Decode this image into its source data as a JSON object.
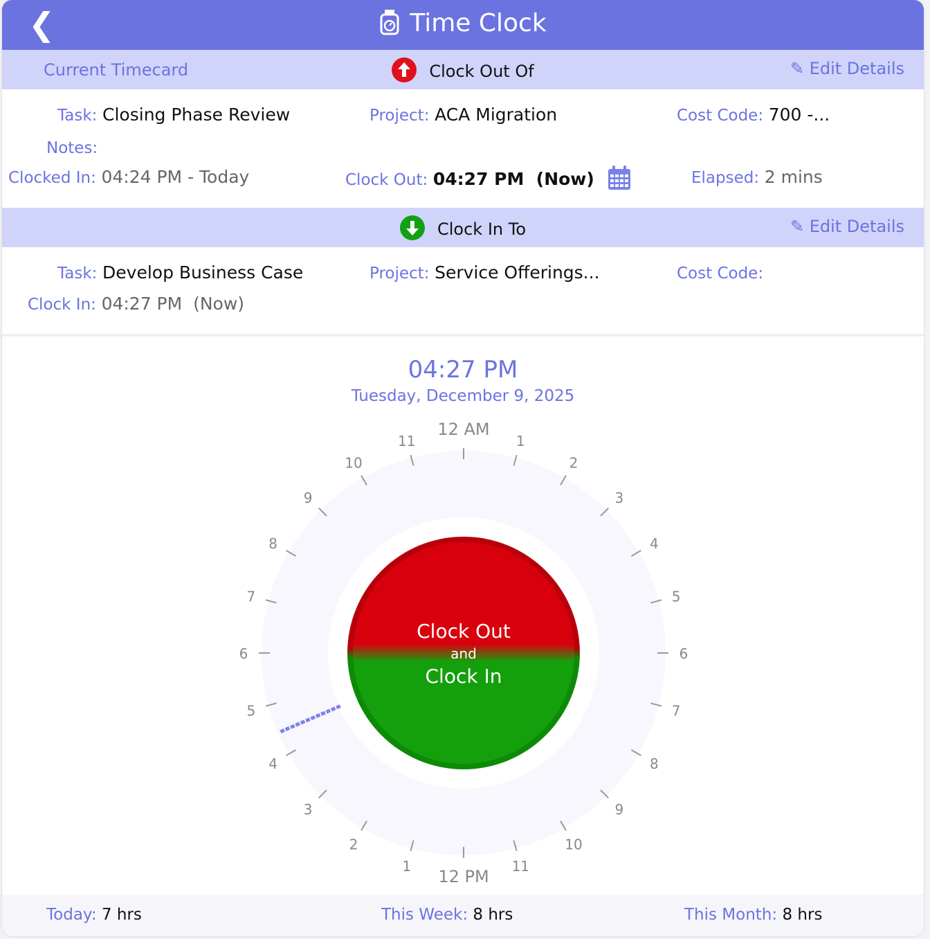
{
  "header": {
    "title": "Time Clock",
    "back_icon": "chevron-left-icon",
    "title_icon": "stopwatch-icon"
  },
  "clock_out": {
    "section_label": "Current Timecard",
    "heading": "Clock Out Of",
    "edit_label": "Edit Details",
    "task_label": "Task:",
    "task": "Closing Phase Review",
    "project_label": "Project:",
    "project": "ACA Migration",
    "cost_code_label": "Cost Code:",
    "cost_code": "700 -...",
    "notes_label": "Notes:",
    "clocked_in_label": "Clocked In:",
    "clocked_in": "04:24 PM - Today",
    "clock_out_label": "Clock Out:",
    "clock_out": "04:27 PM  (Now)",
    "elapsed_label": "Elapsed:",
    "elapsed": "2 mins",
    "color": "#e0101c"
  },
  "clock_in": {
    "heading": "Clock In To",
    "edit_label": "Edit Details",
    "task_label": "Task:",
    "task": "Develop Business Case",
    "project_label": "Project:",
    "project": "Service Offerings...",
    "cost_code_label": "Cost Code:",
    "clock_in_label": "Clock In:",
    "clock_in": "04:27 PM  (Now)",
    "color": "#13a013"
  },
  "dial": {
    "time": "04:27 PM",
    "date": "Tuesday, December 9, 2025",
    "current_hour": 16.45,
    "hour_labels": [
      "12 AM",
      "1",
      "2",
      "3",
      "4",
      "5",
      "6",
      "7",
      "8",
      "9",
      "10",
      "11",
      "12 PM",
      "1",
      "2",
      "3",
      "4",
      "5",
      "6",
      "7",
      "8",
      "9",
      "10",
      "11"
    ],
    "button_line1": "Clock Out",
    "button_line2": "and",
    "button_line3": "Clock In",
    "top_color": "#d9000e",
    "bottom_color": "#14a00c"
  },
  "footer": {
    "today_label": "Today:",
    "today": "7 hrs",
    "week_label": "This Week:",
    "week": "8 hrs",
    "month_label": "This Month:",
    "month": "8 hrs"
  }
}
